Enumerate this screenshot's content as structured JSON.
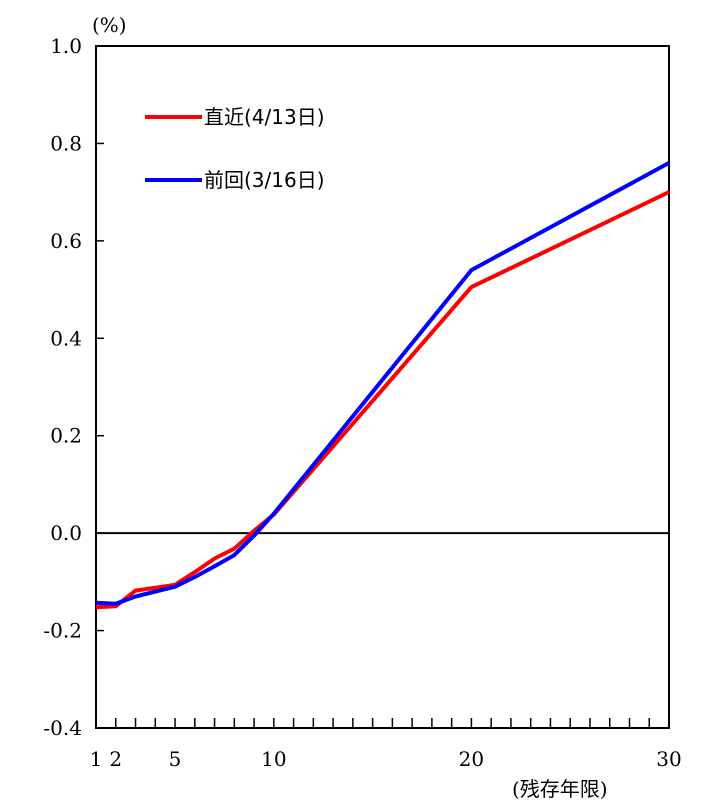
{
  "chart_data": {
    "type": "line",
    "ylabel": "(%)",
    "xlabel": "(残存年限)",
    "xlim": [
      1,
      30
    ],
    "ylim": [
      -0.4,
      1.0
    ],
    "y_ticks": [
      {
        "value": 1.0,
        "label": "1.0"
      },
      {
        "value": 0.8,
        "label": "0.8"
      },
      {
        "value": 0.6,
        "label": "0.6"
      },
      {
        "value": 0.4,
        "label": "0.4"
      },
      {
        "value": 0.2,
        "label": "0.2"
      },
      {
        "value": 0.0,
        "label": "0.0"
      },
      {
        "value": -0.2,
        "label": "-0.2"
      },
      {
        "value": -0.4,
        "label": "-0.4"
      }
    ],
    "x_tick_labels": [
      {
        "value": 1,
        "label": "1"
      },
      {
        "value": 2,
        "label": "2"
      },
      {
        "value": 5,
        "label": "5"
      },
      {
        "value": 10,
        "label": "10"
      },
      {
        "value": 20,
        "label": "20"
      },
      {
        "value": 30,
        "label": "30"
      }
    ],
    "x_minor_ticks": [
      1,
      2,
      3,
      4,
      5,
      6,
      7,
      8,
      9,
      10,
      11,
      12,
      13,
      14,
      15,
      16,
      17,
      18,
      19,
      20,
      21,
      22,
      23,
      24,
      25,
      26,
      27,
      28,
      29,
      30
    ],
    "zero_line": true,
    "grid": false,
    "legend_position": "top-left",
    "series": [
      {
        "name": "直近(4/13日)",
        "color": "#ff0000",
        "x": [
          1,
          2,
          3,
          5,
          6,
          7,
          8,
          9,
          10,
          20,
          30
        ],
        "y": [
          -0.152,
          -0.15,
          -0.118,
          -0.106,
          -0.08,
          -0.052,
          -0.032,
          0.005,
          0.038,
          0.505,
          0.7
        ]
      },
      {
        "name": "前回(3/16日)",
        "color": "#0000ff",
        "x": [
          1,
          2,
          3,
          5,
          6,
          7,
          8,
          9,
          10,
          20,
          30
        ],
        "y": [
          -0.143,
          -0.145,
          -0.13,
          -0.11,
          -0.09,
          -0.068,
          -0.045,
          -0.005,
          0.04,
          0.54,
          0.76
        ]
      }
    ]
  }
}
